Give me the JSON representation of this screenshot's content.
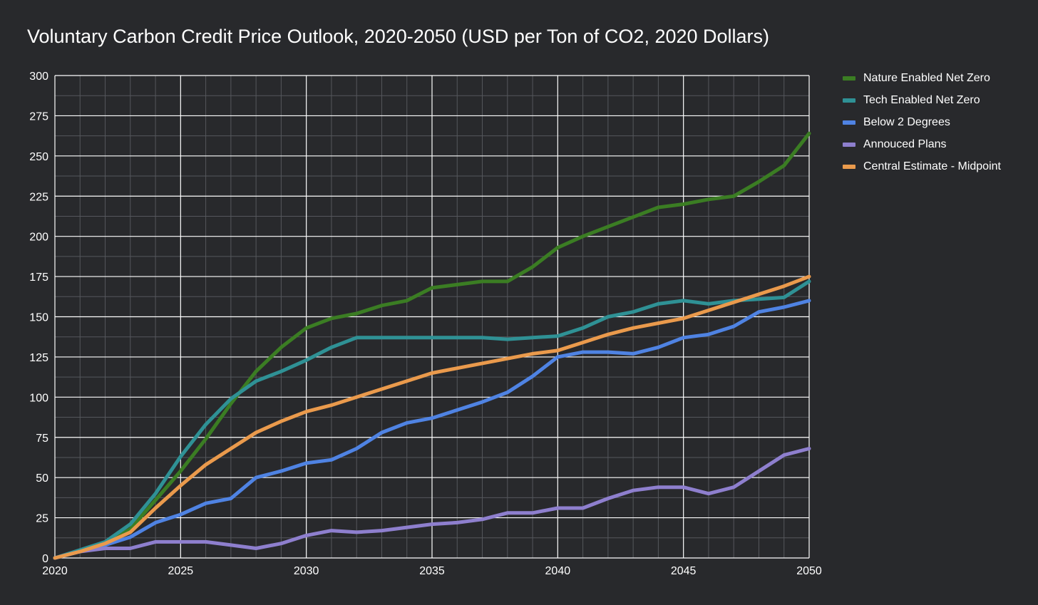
{
  "chart_data": {
    "type": "line",
    "title": "Voluntary Carbon Credit Price Outlook, 2020-2050 (USD per Ton of CO2, 2020 Dollars)",
    "xlabel": "",
    "ylabel": "",
    "xlim": [
      2020,
      2050
    ],
    "ylim": [
      0,
      300
    ],
    "x_ticks": [
      "2020",
      "2025",
      "2030",
      "2035",
      "2040",
      "2045",
      "2050"
    ],
    "y_ticks": [
      "0",
      "25",
      "50",
      "75",
      "100",
      "125",
      "150",
      "175",
      "200",
      "225",
      "250",
      "275",
      "300"
    ],
    "grid": true,
    "legend_position": "right",
    "x": [
      2020,
      2021,
      2022,
      2023,
      2024,
      2025,
      2026,
      2027,
      2028,
      2029,
      2030,
      2031,
      2032,
      2033,
      2034,
      2035,
      2036,
      2037,
      2038,
      2039,
      2040,
      2041,
      2042,
      2043,
      2044,
      2045,
      2046,
      2047,
      2048,
      2049,
      2050
    ],
    "series": [
      {
        "name": "Nature Enabled Net Zero",
        "color": "#3b7d23",
        "values": [
          0,
          4,
          9,
          18,
          36,
          54,
          74,
          96,
          116,
          131,
          143,
          149,
          152,
          157,
          160,
          168,
          170,
          172,
          172,
          181,
          193,
          200,
          206,
          212,
          218,
          220,
          223,
          225,
          234,
          244,
          264
        ]
      },
      {
        "name": "Tech Enabled Net Zero",
        "color": "#2f9195",
        "values": [
          0,
          5,
          10,
          21,
          40,
          63,
          83,
          99,
          110,
          116,
          123,
          131,
          137,
          137,
          137,
          137,
          137,
          137,
          136,
          137,
          138,
          143,
          150,
          153,
          158,
          160,
          158,
          160,
          161,
          162,
          172
        ]
      },
      {
        "name": "Below 2 Degrees",
        "color": "#4f83e3",
        "values": [
          0,
          4,
          8,
          13,
          22,
          27,
          34,
          37,
          50,
          54,
          59,
          61,
          68,
          78,
          84,
          87,
          92,
          97,
          103,
          113,
          125,
          128,
          128,
          127,
          131,
          137,
          139,
          144,
          153,
          156,
          160
        ]
      },
      {
        "name": "Annouced Plans",
        "color": "#8e7fce",
        "values": [
          0,
          4,
          6,
          6,
          10,
          10,
          10,
          8,
          6,
          9,
          14,
          17,
          16,
          17,
          19,
          21,
          22,
          24,
          28,
          28,
          31,
          31,
          37,
          42,
          44,
          44,
          40,
          44,
          54,
          64,
          68
        ]
      },
      {
        "name": "Central Estimate - Midpoint",
        "color": "#ea9a4c",
        "values": [
          0,
          4,
          9,
          16,
          31,
          45,
          58,
          68,
          78,
          85,
          91,
          95,
          100,
          105,
          110,
          115,
          118,
          121,
          124,
          127,
          129,
          134,
          139,
          143,
          146,
          149,
          154,
          159,
          164,
          169,
          175
        ]
      }
    ]
  }
}
